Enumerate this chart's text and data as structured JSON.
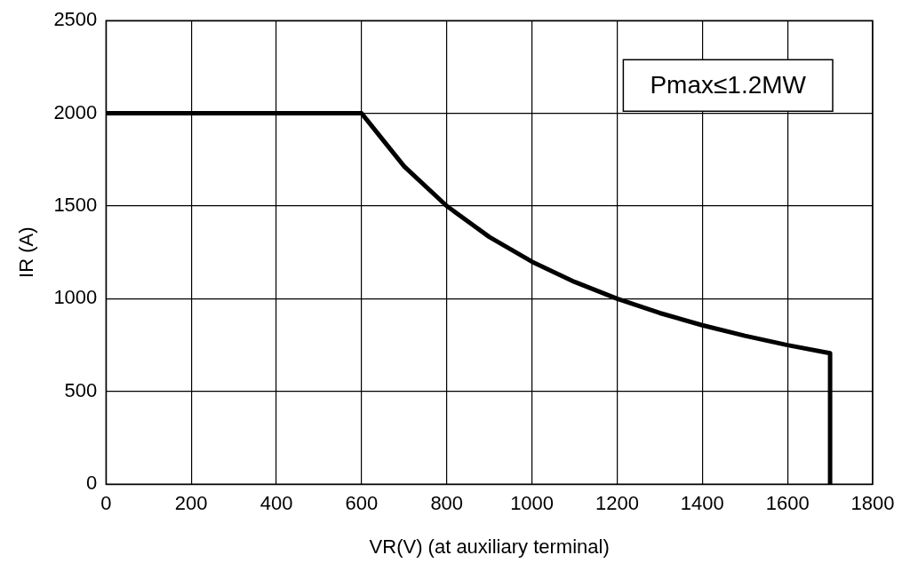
{
  "chart_data": {
    "type": "line",
    "xlabel": "VR(V) (at auxiliary terminal)",
    "ylabel": "IR (A)",
    "series": [
      {
        "color": "#000000",
        "x": [
          0,
          600,
          700,
          800,
          900,
          1000,
          1100,
          1200,
          1300,
          1400,
          1500,
          1600,
          1700,
          1700
        ],
        "values": [
          2000,
          2000,
          1714,
          1500,
          1333,
          1200,
          1091,
          1000,
          923,
          857,
          800,
          750,
          706,
          0
        ]
      }
    ],
    "xlim": [
      0,
      1800
    ],
    "xticks": [
      0,
      200,
      400,
      600,
      800,
      1000,
      1200,
      1400,
      1600,
      1800
    ],
    "ylim": [
      0,
      2500
    ],
    "yticks": [
      0,
      500,
      1000,
      1500,
      2000,
      2500
    ],
    "grid": true,
    "legend": false,
    "marker": "none",
    "line_style": "solid",
    "annotations": [
      "Pmax≤1.2MW"
    ]
  }
}
